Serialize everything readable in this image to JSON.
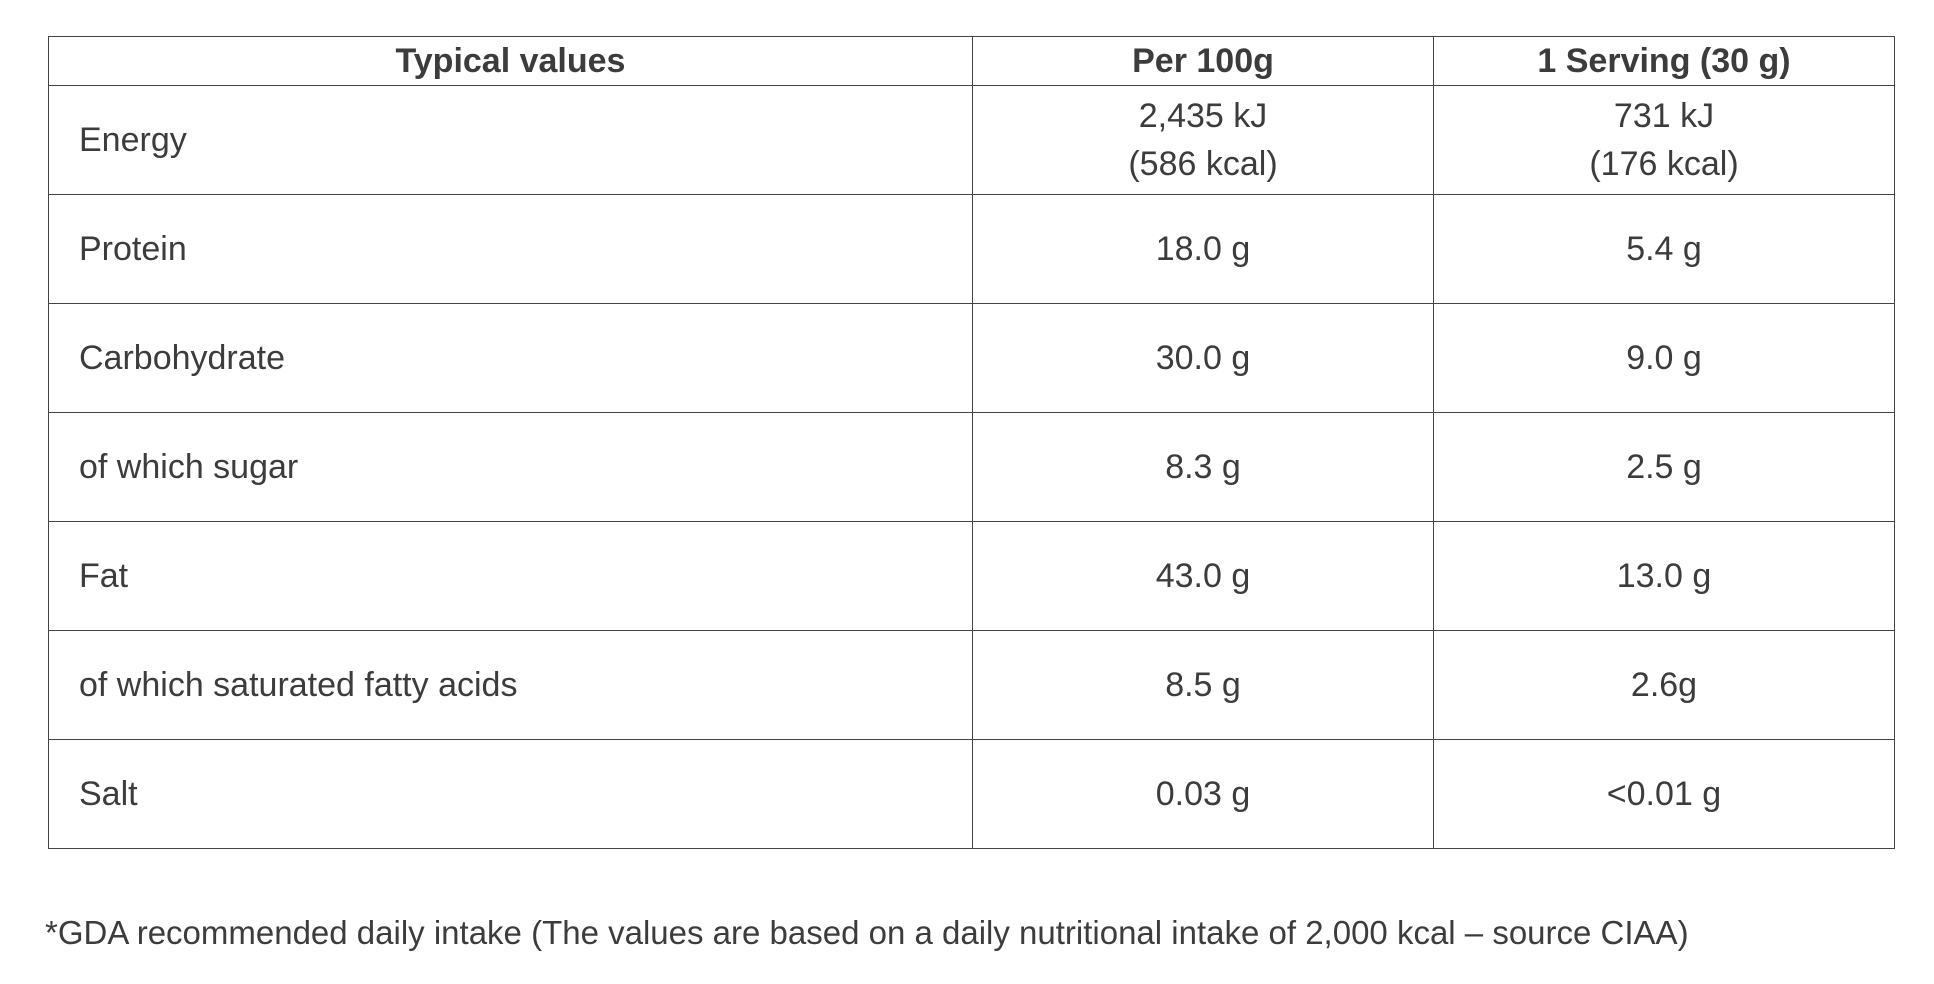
{
  "table": {
    "header": [
      "Typical values",
      "Per 100g",
      "1 Serving (30 g)"
    ],
    "rows": [
      [
        "Energy",
        [
          "2,435 kJ",
          "(586 kcal)"
        ],
        [
          "731 kJ",
          "(176 kcal)"
        ]
      ],
      [
        "Protein",
        "18.0 g",
        "5.4 g"
      ],
      [
        "Carbohydrate",
        "30.0 g",
        "9.0 g"
      ],
      [
        "of which sugar",
        "8.3 g",
        "2.5 g"
      ],
      [
        "Fat",
        "43.0 g",
        "13.0 g"
      ],
      [
        "of which saturated fatty acids",
        "8.5 g",
        "2.6g"
      ],
      [
        "Salt",
        "0.03 g",
        "<0.01 g"
      ]
    ]
  },
  "footnote": "*GDA recommended daily intake (The values are based on a daily nutritional intake of 2,000 kcal – source CIAA)"
}
